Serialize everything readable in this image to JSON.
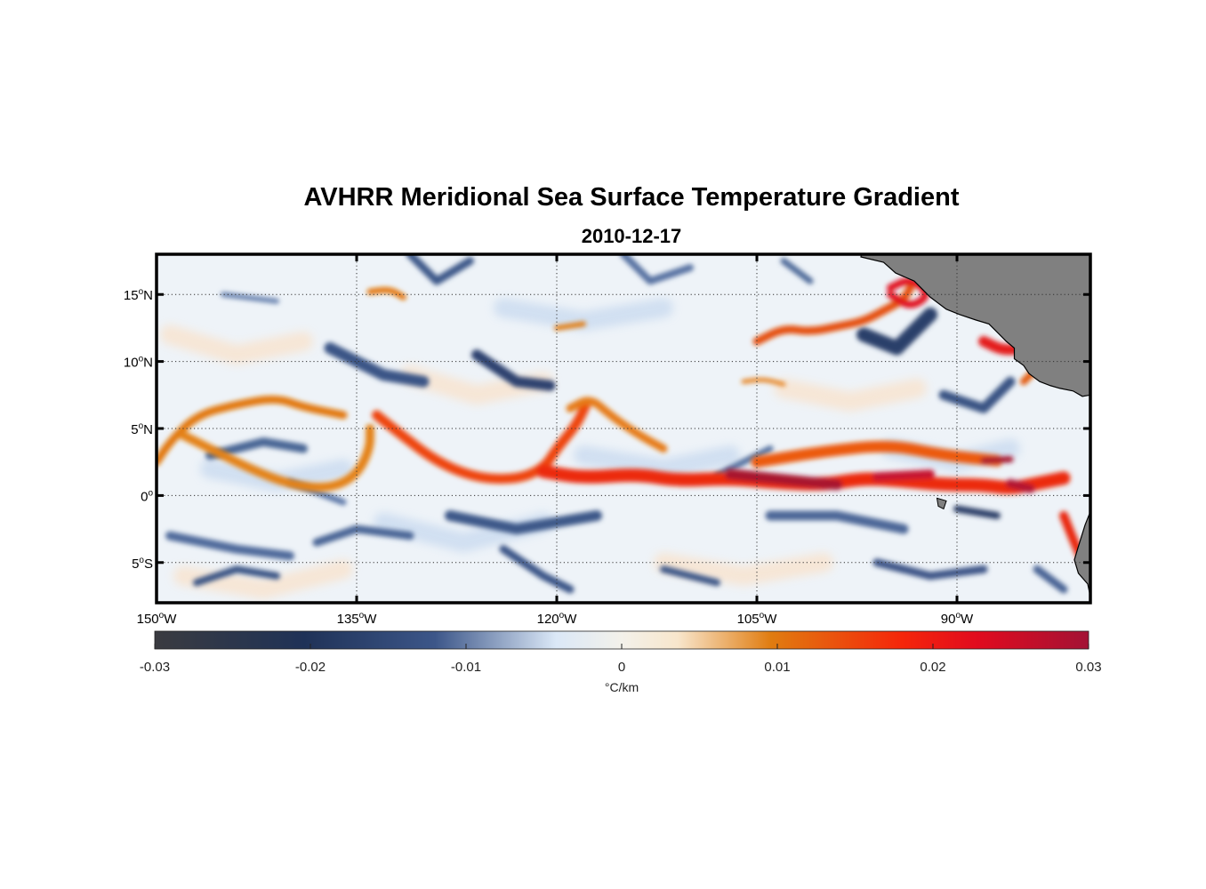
{
  "title": "AVHRR Meridional Sea Surface Temperature Gradient",
  "subtitle": "2010-12-17",
  "map": {
    "extent": {
      "lon_min": -150,
      "lon_max": -80,
      "lat_min": -8,
      "lat_max": 18
    },
    "grid": "dotted",
    "land_color": "#808080",
    "lat_ticks": [
      {
        "value": 15,
        "num": "15",
        "hemi": "N"
      },
      {
        "value": 10,
        "num": "10",
        "hemi": "N"
      },
      {
        "value": 5,
        "num": "5",
        "hemi": "N"
      },
      {
        "value": 0,
        "num": "0",
        "hemi": ""
      },
      {
        "value": -5,
        "num": "5",
        "hemi": "S"
      }
    ],
    "lon_ticks": [
      {
        "value": -150,
        "num": "150",
        "hemi": "W"
      },
      {
        "value": -135,
        "num": "135",
        "hemi": "W"
      },
      {
        "value": -120,
        "num": "120",
        "hemi": "W"
      },
      {
        "value": -105,
        "num": "105",
        "hemi": "W"
      },
      {
        "value": -90,
        "num": "90",
        "hemi": "W"
      }
    ]
  },
  "colorbar": {
    "min": -0.03,
    "max": 0.03,
    "ticks": [
      {
        "value": -0.03,
        "label": "-0.03"
      },
      {
        "value": -0.02,
        "label": "-0.02"
      },
      {
        "value": -0.01,
        "label": "-0.01"
      },
      {
        "value": 0,
        "label": "0"
      },
      {
        "value": 0.01,
        "label": "0.01"
      },
      {
        "value": 0.02,
        "label": "0.02"
      },
      {
        "value": 0.03,
        "label": "0.03"
      }
    ],
    "unit": "°C/km",
    "colors": [
      "#3a3b40",
      "#1f3257",
      "#3c5689",
      "#dbe8f7",
      "#f3f1ea",
      "#f8e6cc",
      "#e07c10",
      "#f5260a",
      "#e10b1e",
      "#a31235"
    ]
  }
}
